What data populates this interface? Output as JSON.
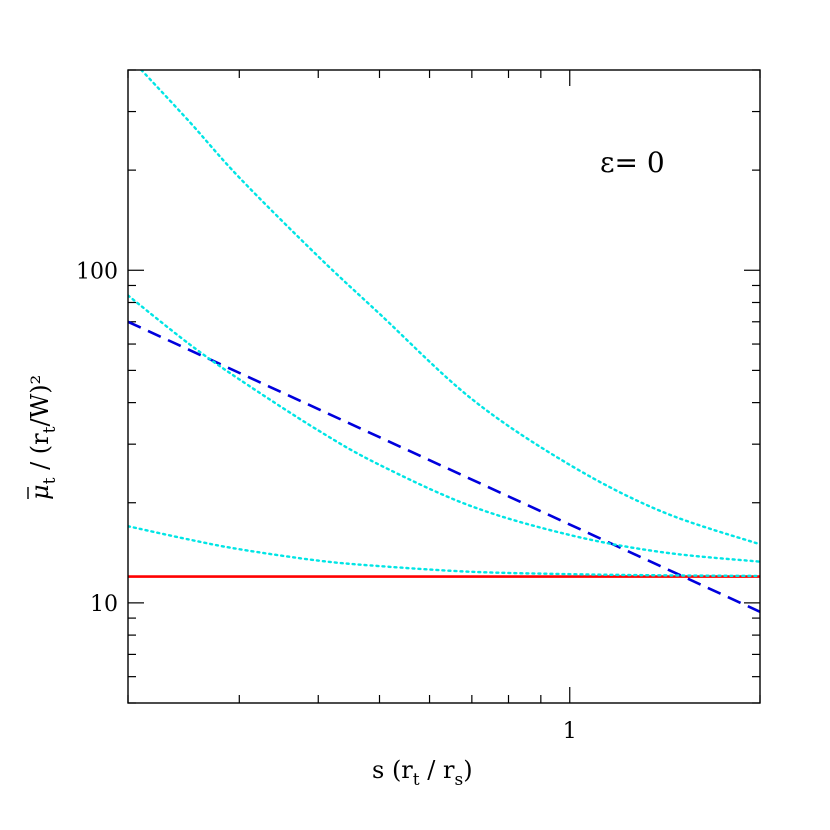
{
  "chart_data": {
    "type": "line",
    "xlabel": {
      "base": "s (r",
      "sub1": "t",
      "mid": " / r",
      "sub2": "s",
      "end": ")"
    },
    "ylabel": {
      "mu": "μ",
      "mu_sub": "t",
      "mid": " / (r",
      "r_sub": "t",
      "end": "/W)²"
    },
    "annotation": "ε= 0",
    "x_scale": "log",
    "y_scale": "log",
    "xlim": [
      0.2,
      2.0
    ],
    "ylim": [
      5,
      400
    ],
    "x_tick_labels": [
      {
        "value": 1,
        "label": "1"
      }
    ],
    "y_tick_labels": [
      {
        "value": 10,
        "label": "10"
      },
      {
        "value": 100,
        "label": "100"
      }
    ],
    "series": [
      {
        "style": "solid",
        "color": "#ff0000",
        "x": [
          0.2,
          2.0
        ],
        "y": [
          12.0,
          12.0
        ]
      },
      {
        "style": "dashed",
        "color": "#0000dd",
        "x": [
          0.2,
          2.0
        ],
        "y": [
          70,
          9.4
        ]
      },
      {
        "style": "dotted",
        "color": "#00e5e5",
        "x": [
          0.2,
          0.25,
          0.3,
          0.4,
          0.5,
          0.7,
          1.0,
          1.4,
          2.0
        ],
        "y": [
          17.0,
          15.5,
          14.5,
          13.4,
          12.9,
          12.4,
          12.2,
          12.1,
          12.05
        ]
      },
      {
        "style": "dotted",
        "color": "#00e5e5",
        "x": [
          0.2,
          0.25,
          0.3,
          0.4,
          0.5,
          0.7,
          1.0,
          1.4,
          2.0
        ],
        "y": [
          84,
          60,
          47,
          33,
          26,
          19.5,
          16.0,
          14.2,
          13.3
        ]
      },
      {
        "style": "dotted",
        "color": "#00e5e5",
        "x": [
          0.21,
          0.25,
          0.3,
          0.4,
          0.5,
          0.7,
          1.0,
          1.4,
          2.0
        ],
        "y": [
          400,
          280,
          190,
          110,
          74,
          41,
          26,
          18.8,
          15.0
        ]
      }
    ]
  }
}
